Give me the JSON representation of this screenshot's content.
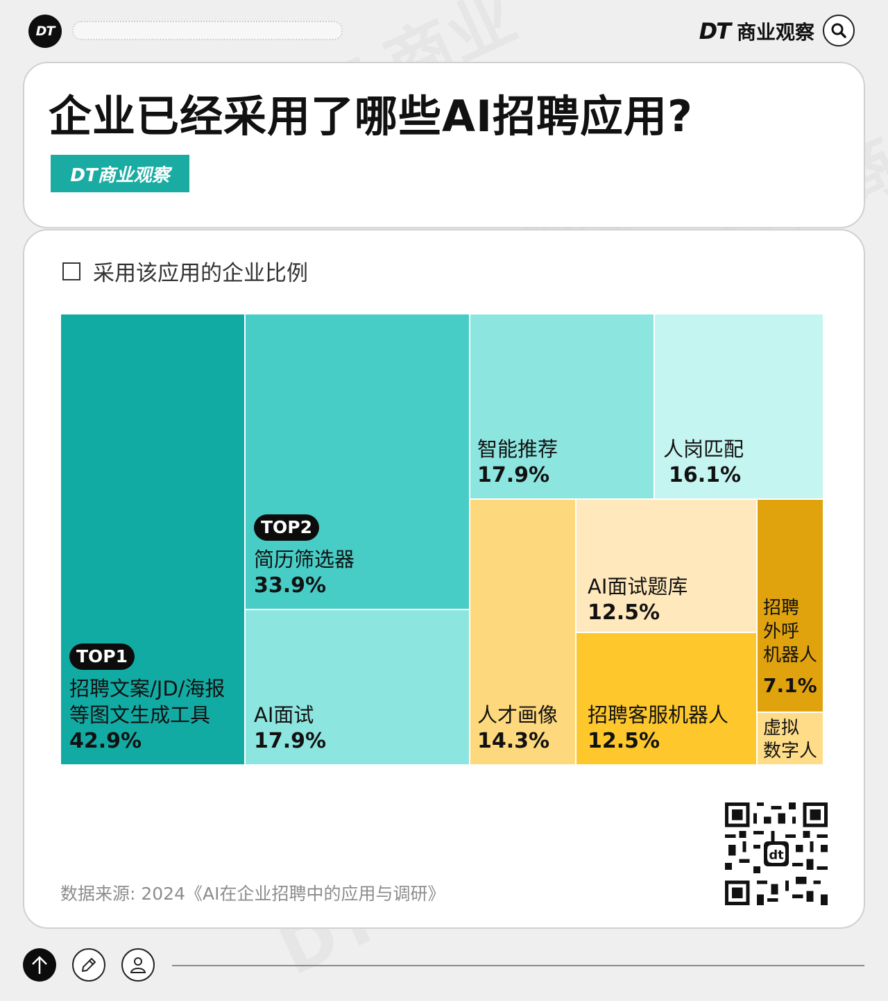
{
  "header": {
    "logo_text": "DT",
    "brand_dt": "DT",
    "brand_name": "商业观察",
    "search_icon": "search-icon"
  },
  "title": "企业已经采用了哪些AI招聘应用?",
  "badge": "DT商业观察",
  "legend": "采用该应用的企业比例",
  "colors": {
    "teal_dark": "#12aba4",
    "teal_mid": "#48cdc6",
    "teal_light": "#8de5df",
    "teal_pale": "#c5f5f1",
    "yellow_light": "#fed87d",
    "yellow_pale": "#ffe9bc",
    "yellow_strong": "#fec82c",
    "gold": "#e0a30e",
    "yellow_soft": "#ffdc88"
  },
  "chart_data": {
    "type": "treemap",
    "title": "企业已经采用了哪些AI招聘应用?",
    "legend": "采用该应用的企业比例",
    "items": [
      {
        "label": "招聘文案/JD/海报等图文生成工具",
        "value": 42.9,
        "display": "42.9%",
        "rank": "TOP1"
      },
      {
        "label": "简历筛选器",
        "value": 33.9,
        "display": "33.9%",
        "rank": "TOP2"
      },
      {
        "label": "AI面试",
        "value": 17.9,
        "display": "17.9%"
      },
      {
        "label": "智能推荐",
        "value": 17.9,
        "display": "17.9%"
      },
      {
        "label": "人岗匹配",
        "value": 16.1,
        "display": "16.1%"
      },
      {
        "label": "人才画像",
        "value": 14.3,
        "display": "14.3%"
      },
      {
        "label": "AI面试题库",
        "value": 12.5,
        "display": "12.5%"
      },
      {
        "label": "招聘客服机器人",
        "value": 12.5,
        "display": "12.5%"
      },
      {
        "label": "招聘外呼机器人",
        "value": 7.1,
        "display": "7.1%"
      },
      {
        "label": "虚拟数字人",
        "value": null,
        "display": ""
      }
    ]
  },
  "cells": {
    "c1": {
      "badge": "TOP1",
      "line1": "招聘文案/JD/海报",
      "line2": "等图文生成工具",
      "pct": "42.9%"
    },
    "c2": {
      "badge": "TOP2",
      "line1": "简历筛选器",
      "pct": "33.9%"
    },
    "c3": {
      "line1": "AI面试",
      "pct": "17.9%"
    },
    "c4": {
      "line1": "智能推荐",
      "pct": "17.9%"
    },
    "c5": {
      "line1": "人岗匹配",
      "pct": "16.1%"
    },
    "c6": {
      "line1": "人才画像",
      "pct": "14.3%"
    },
    "c7": {
      "line1": "AI面试题库",
      "pct": "12.5%"
    },
    "c8": {
      "line1": "招聘客服机器人",
      "pct": "12.5%"
    },
    "c9": {
      "line1": "招聘",
      "line2": "外呼",
      "line3": "机器人",
      "pct": "7.1%"
    },
    "c10": {
      "line1": "虚拟",
      "line2": "数字人"
    }
  },
  "source": "数据来源: 2024《AI在企业招聘中的应用与调研》",
  "footer": {
    "icons": [
      "arrow-up-icon",
      "pencil-icon",
      "user-icon"
    ]
  }
}
